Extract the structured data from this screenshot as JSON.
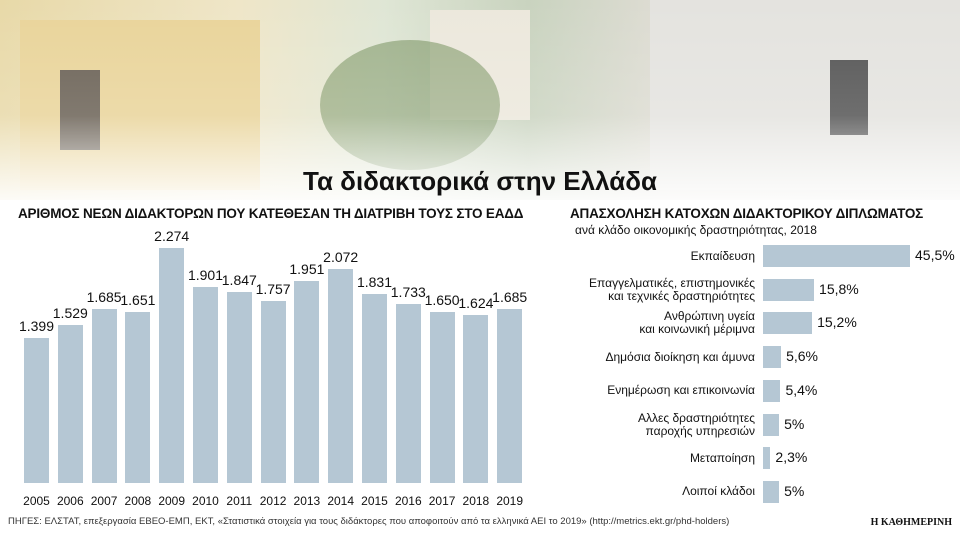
{
  "title": "Τα διδακτορικά στην Ελλάδα",
  "source": "ΠΗΓΕΣ: ΕΛΣΤΑΤ, επεξεργασία ΕΒΕΟ-ΕΜΠ, ΕΚΤ, «Στατιστικά στοιχεία για τους διδάκτορες που αποφοιτούν από τα ελληνικά ΑΕΙ το 2019» (http://metrics.ekt.gr/phd-holders)",
  "publisher": "Η ΚΑΘΗΜΕΡΙΝΗ",
  "chart_data": [
    {
      "type": "bar",
      "title": "ΑΡΙΘΜΟΣ ΝΕΩΝ ΔΙΔΑΚΤΟΡΩΝ ΠΟΥ ΚΑΤΕΘΕΣΑΝ ΤΗ ΔΙΑΤΡΙΒΗ ΤΟΥΣ ΣΤΟ ΕΑΔΔ",
      "categories": [
        "2005",
        "2006",
        "2007",
        "2008",
        "2009",
        "2010",
        "2011",
        "2012",
        "2013",
        "2014",
        "2015",
        "2016",
        "2017",
        "2018",
        "2019"
      ],
      "values": [
        1399,
        1529,
        1685,
        1651,
        2274,
        1901,
        1847,
        1757,
        1951,
        2072,
        1831,
        1733,
        1650,
        1624,
        1685
      ],
      "value_labels": [
        "1.399",
        "1.529",
        "1.685",
        "1.651",
        "2.274",
        "1.901",
        "1.847",
        "1.757",
        "1.951",
        "2.072",
        "1.831",
        "1.733",
        "1.650",
        "1.624",
        "1.685"
      ],
      "color": "#b5c7d4"
    },
    {
      "type": "barh",
      "title": "ΑΠΑΣΧΟΛΗΣΗ ΚΑΤΟΧΩΝ ΔΙΔΑΚΤΟΡΙΚΟΥ ΔΙΠΛΩΜΑΤΟΣ",
      "subtitle": "ανά κλάδο οικονομικής δραστηριότητας, 2018",
      "categories": [
        "Εκπαίδευση",
        "Επαγγελματικές, επιστημονικές\nκαι τεχνικές δραστηριότητες",
        "Ανθρώπινη υγεία\nκαι κοινωνική μέριμνα",
        "Δημόσια διοίκηση και άμυνα",
        "Ενημέρωση και επικοινωνία",
        "Αλλες δραστηριότητες\nπαροχής υπηρεσιών",
        "Μεταποίηση",
        "Λοιποί κλάδοι"
      ],
      "values": [
        45.5,
        15.8,
        15.2,
        5.6,
        5.4,
        5,
        2.3,
        5
      ],
      "value_labels": [
        "45,5%",
        "15,8%",
        "15,2%",
        "5,6%",
        "5,4%",
        "5%",
        "2,3%",
        "5%"
      ],
      "color": "#b5c7d4"
    }
  ]
}
